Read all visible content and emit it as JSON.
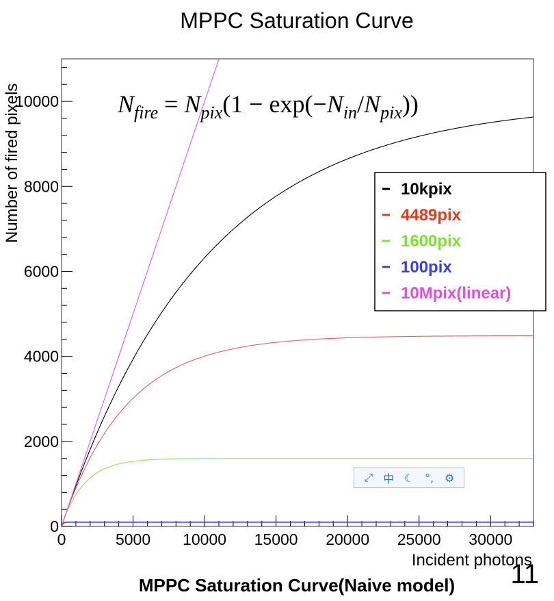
{
  "page": {
    "title": "MPPC Saturation Curve",
    "caption": "MPPC Saturation Curve(Naive model)",
    "slide_number": "11",
    "formula": {
      "lhs_main": "N",
      "lhs_sub": "fire",
      "eq": " = ",
      "rhs_main": "N",
      "rhs_sub": "pix",
      "rhs_open": "(1 − exp(−",
      "rhs_in_main": "N",
      "rhs_in_sub": "in",
      "rhs_slash": "/",
      "rhs_pix_main": "N",
      "rhs_pix_sub": "pix",
      "rhs_close": "))"
    }
  },
  "ime_toolbar": {
    "icons": [
      "expand-icon",
      "chinese-mode-icon",
      "moon-icon",
      "punctuation-icon",
      "settings-icon"
    ],
    "glyphs": [
      "⤢",
      "中",
      "☾",
      "°,",
      "⚙"
    ]
  },
  "chart_data": {
    "type": "line",
    "title": "MPPC Saturation Curve",
    "xlabel": "Incident photons",
    "ylabel": "Number of fired pixels",
    "xlim": [
      0,
      33000
    ],
    "ylim": [
      0,
      11000
    ],
    "x_ticks": [
      0,
      5000,
      10000,
      15000,
      20000,
      25000,
      30000
    ],
    "y_ticks": [
      0,
      2000,
      4000,
      6000,
      8000,
      10000
    ],
    "grid": false,
    "legend_position": "right",
    "model": "N_fire = N_pix(1 - exp(-N_in/N_pix))",
    "series": [
      {
        "name": "10kpix",
        "npix": 10000,
        "color": "#000000",
        "legend_color": "#000000"
      },
      {
        "name": "4489pix",
        "npix": 4489,
        "color": "#e06060",
        "legend_color": "#e8391d"
      },
      {
        "name": "1600pix",
        "npix": 1600,
        "color": "#8fe05a",
        "legend_color": "#78e62b"
      },
      {
        "name": "100pix",
        "npix": 100,
        "color": "#3a3ae8",
        "legend_color": "#3b3bf0"
      },
      {
        "name": "10Mpix(linear)",
        "npix": 10000000,
        "color": "#e05ae0",
        "legend_color": "#e14ee0"
      }
    ]
  }
}
